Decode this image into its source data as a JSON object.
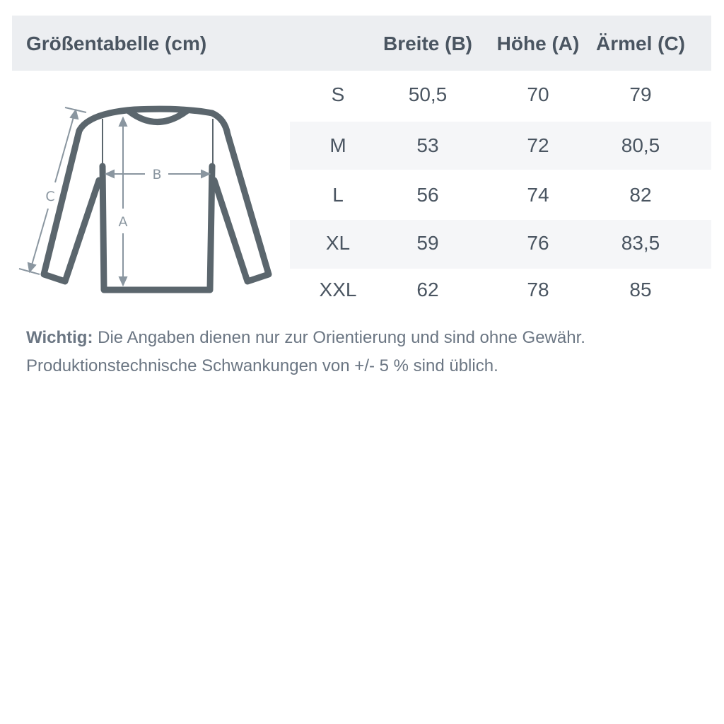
{
  "header": {
    "title": "Größentabelle (cm)",
    "columns": [
      "Breite (B)",
      "Höhe (A)",
      "Ärmel (C)"
    ]
  },
  "rows": [
    {
      "size": "S",
      "breite": "50,5",
      "hoehe": "70",
      "aermel": "79"
    },
    {
      "size": "M",
      "breite": "53",
      "hoehe": "72",
      "aermel": "80,5"
    },
    {
      "size": "L",
      "breite": "56",
      "hoehe": "74",
      "aermel": "82"
    },
    {
      "size": "XL",
      "breite": "59",
      "hoehe": "76",
      "aermel": "83,5"
    },
    {
      "size": "XXL",
      "breite": "62",
      "hoehe": "78",
      "aermel": "85"
    }
  ],
  "diagram": {
    "labels": {
      "a": "A",
      "b": "B",
      "c": "C"
    }
  },
  "note": {
    "label": "Wichtig:",
    "line1": " Die Angaben dienen nur zur Orientierung und sind ohne Gewähr.",
    "line2": "Produktionstechnische Schwankungen von +/- 5 % sind üblich."
  },
  "colors": {
    "header_bg": "#eceef1",
    "text": "#4a5561",
    "garment": "#5b666d",
    "measure": "#8a96a0"
  }
}
